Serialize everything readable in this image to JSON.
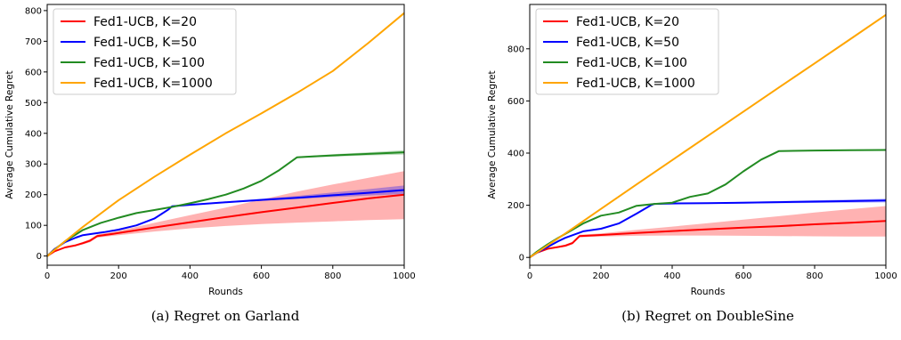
{
  "chart_data": [
    {
      "type": "line",
      "caption": "(a) Regret on Garland",
      "xlabel": "Rounds",
      "ylabel": "Average Cumulative Regret",
      "xlim": [
        0,
        1000
      ],
      "ylim": [
        -30,
        820
      ],
      "xticks": [
        0,
        200,
        400,
        600,
        800,
        1000
      ],
      "yticks": [
        0,
        100,
        200,
        300,
        400,
        500,
        600,
        700,
        800
      ],
      "legend_position": "top-left",
      "series": [
        {
          "name": "Fed1-UCB, K=20",
          "color": "#ff0000",
          "x": [
            0,
            20,
            50,
            80,
            100,
            120,
            140,
            200,
            300,
            400,
            500,
            600,
            700,
            800,
            900,
            1000
          ],
          "y": [
            0,
            15,
            28,
            35,
            42,
            50,
            65,
            75,
            93,
            110,
            127,
            143,
            158,
            173,
            188,
            200
          ],
          "band_lower": [
            0,
            14,
            26,
            32,
            38,
            45,
            60,
            68,
            80,
            90,
            98,
            104,
            109,
            113,
            117,
            120
          ],
          "band_upper": [
            0,
            16,
            30,
            38,
            46,
            55,
            70,
            82,
            108,
            133,
            158,
            184,
            210,
            233,
            255,
            277
          ]
        },
        {
          "name": "Fed1-UCB, K=50",
          "color": "#0000ff",
          "x": [
            0,
            20,
            50,
            80,
            100,
            130,
            160,
            200,
            250,
            300,
            340,
            350,
            400,
            500,
            600,
            700,
            800,
            900,
            1000
          ],
          "y": [
            0,
            22,
            45,
            60,
            68,
            73,
            78,
            86,
            100,
            122,
            152,
            162,
            167,
            175,
            183,
            190,
            198,
            206,
            215
          ],
          "band_lower": [
            0,
            21,
            44,
            59,
            67,
            72,
            77,
            85,
            99,
            120,
            150,
            160,
            165,
            173,
            180,
            186,
            192,
            197,
            202
          ],
          "band_upper": [
            0,
            23,
            46,
            61,
            69,
            74,
            79,
            87,
            101,
            124,
            154,
            164,
            169,
            178,
            187,
            196,
            207,
            218,
            230
          ]
        },
        {
          "name": "Fed1-UCB, K=100",
          "color": "#228b22",
          "x": [
            0,
            20,
            50,
            80,
            100,
            150,
            200,
            250,
            300,
            350,
            400,
            450,
            500,
            550,
            600,
            650,
            700,
            750,
            800,
            900,
            1000
          ],
          "y": [
            0,
            20,
            48,
            70,
            85,
            108,
            125,
            140,
            150,
            160,
            172,
            185,
            200,
            220,
            245,
            280,
            322,
            325,
            328,
            333,
            338
          ],
          "band_lower": [
            0,
            19,
            47,
            69,
            84,
            107,
            124,
            139,
            149,
            159,
            171,
            184,
            199,
            219,
            244,
            279,
            320,
            322,
            324,
            328,
            331
          ],
          "band_upper": [
            0,
            21,
            49,
            71,
            86,
            109,
            126,
            141,
            151,
            161,
            173,
            186,
            201,
            221,
            246,
            281,
            324,
            328,
            332,
            338,
            345
          ]
        },
        {
          "name": "Fed1-UCB, K=1000",
          "color": "#ffa500",
          "x": [
            0,
            50,
            100,
            200,
            300,
            400,
            500,
            600,
            700,
            800,
            900,
            1000
          ],
          "y": [
            0,
            48,
            95,
            182,
            258,
            330,
            400,
            465,
            532,
            603,
            695,
            792
          ]
        }
      ]
    },
    {
      "type": "line",
      "caption": "(b) Regret on DoubleSine",
      "xlabel": "Rounds",
      "ylabel": "Average Cumulative Regret",
      "xlim": [
        0,
        1000
      ],
      "ylim": [
        -30,
        970
      ],
      "xticks": [
        0,
        200,
        400,
        600,
        800,
        1000
      ],
      "yticks": [
        0,
        200,
        400,
        600,
        800
      ],
      "legend_position": "top-left",
      "series": [
        {
          "name": "Fed1-UCB, K=20",
          "color": "#ff0000",
          "x": [
            0,
            20,
            50,
            80,
            100,
            120,
            140,
            200,
            300,
            400,
            500,
            600,
            700,
            800,
            900,
            1000
          ],
          "y": [
            0,
            18,
            33,
            40,
            45,
            55,
            82,
            86,
            94,
            101,
            108,
            114,
            120,
            127,
            133,
            140
          ],
          "band_lower": [
            0,
            17,
            31,
            37,
            41,
            50,
            77,
            80,
            83,
            84,
            84,
            83,
            82,
            81,
            80,
            80
          ],
          "band_upper": [
            0,
            19,
            35,
            43,
            49,
            60,
            87,
            92,
            106,
            118,
            131,
            145,
            158,
            172,
            185,
            197
          ]
        },
        {
          "name": "Fed1-UCB, K=50",
          "color": "#0000ff",
          "x": [
            0,
            20,
            50,
            80,
            100,
            150,
            200,
            250,
            300,
            340,
            350,
            400,
            500,
            600,
            700,
            800,
            900,
            1000
          ],
          "y": [
            0,
            18,
            40,
            62,
            75,
            100,
            110,
            130,
            168,
            200,
            205,
            207,
            208,
            210,
            212,
            214,
            216,
            218
          ],
          "band_lower": [
            0,
            17,
            39,
            61,
            74,
            99,
            109,
            129,
            167,
            199,
            204,
            205,
            206,
            207,
            208,
            209,
            210,
            211
          ],
          "band_upper": [
            0,
            19,
            41,
            63,
            76,
            101,
            111,
            131,
            169,
            201,
            206,
            209,
            210,
            213,
            216,
            219,
            222,
            225
          ]
        },
        {
          "name": "Fed1-UCB, K=100",
          "color": "#228b22",
          "x": [
            0,
            20,
            50,
            80,
            100,
            150,
            200,
            250,
            300,
            350,
            400,
            450,
            500,
            550,
            600,
            650,
            700,
            800,
            900,
            1000
          ],
          "y": [
            0,
            22,
            50,
            75,
            90,
            130,
            160,
            172,
            198,
            205,
            210,
            232,
            245,
            280,
            330,
            375,
            408,
            410,
            411,
            412
          ],
          "band_lower": [
            0,
            21,
            49,
            74,
            89,
            129,
            159,
            171,
            197,
            204,
            209,
            231,
            244,
            279,
            329,
            374,
            406,
            408,
            409,
            410
          ],
          "band_upper": [
            0,
            23,
            51,
            76,
            91,
            131,
            161,
            173,
            199,
            206,
            211,
            233,
            246,
            281,
            331,
            376,
            410,
            412,
            413,
            414
          ]
        },
        {
          "name": "Fed1-UCB, K=1000",
          "color": "#ffa500",
          "x": [
            0,
            100,
            200,
            300,
            400,
            500,
            600,
            700,
            800,
            900,
            1000
          ],
          "y": [
            0,
            92,
            186,
            280,
            373,
            466,
            559,
            652,
            744,
            837,
            930
          ]
        }
      ]
    }
  ]
}
